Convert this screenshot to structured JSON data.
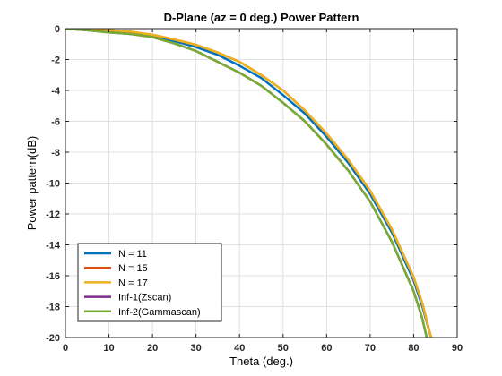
{
  "chart_data": {
    "type": "line",
    "title": "D-Plane (az = 0 deg.) Power Pattern",
    "xlabel": "Theta (deg.)",
    "ylabel": "Power pattern(dB)",
    "xlim": [
      0,
      90
    ],
    "ylim": [
      -20,
      0
    ],
    "xticks": [
      "0",
      "10",
      "20",
      "30",
      "40",
      "50",
      "60",
      "70",
      "80",
      "90"
    ],
    "yticks": [
      "0",
      "-2",
      "-4",
      "-6",
      "-8",
      "-10",
      "-12",
      "-14",
      "-16",
      "-18",
      "-20"
    ],
    "grid": true,
    "legend_position": "bottom-left",
    "series": [
      {
        "name": "N = 11",
        "color": "#0072BD",
        "x": [
          0,
          5,
          10,
          15,
          20,
          25,
          30,
          35,
          40,
          45,
          50,
          55,
          60,
          65,
          70,
          75,
          80,
          82,
          84
        ],
        "y": [
          0,
          -0.1,
          -0.2,
          -0.35,
          -0.5,
          -0.8,
          -1.2,
          -1.7,
          -2.4,
          -3.2,
          -4.3,
          -5.5,
          -7.0,
          -8.7,
          -10.7,
          -13.2,
          -16.3,
          -18.0,
          -20.0
        ]
      },
      {
        "name": "N = 15",
        "color": "#D95319",
        "x": [
          0,
          5,
          10,
          15,
          20,
          25,
          30,
          35,
          40,
          45,
          50,
          55,
          60,
          65,
          70,
          75,
          80,
          82,
          84
        ],
        "y": [
          0,
          -0.05,
          -0.1,
          -0.2,
          -0.4,
          -0.7,
          -1.05,
          -1.55,
          -2.15,
          -3.0,
          -4.0,
          -5.3,
          -6.8,
          -8.5,
          -10.5,
          -13.0,
          -16.1,
          -17.8,
          -20.0
        ]
      },
      {
        "name": "N = 17",
        "color": "#EDB120",
        "x": [
          0,
          5,
          10,
          15,
          20,
          25,
          30,
          35,
          40,
          45,
          50,
          55,
          60,
          65,
          70,
          75,
          80,
          82,
          84
        ],
        "y": [
          0,
          -0.05,
          -0.1,
          -0.2,
          -0.4,
          -0.7,
          -1.05,
          -1.55,
          -2.15,
          -3.0,
          -4.0,
          -5.3,
          -6.8,
          -8.5,
          -10.5,
          -13.0,
          -16.1,
          -17.8,
          -20.0
        ]
      },
      {
        "name": "Inf-1(Zscan)",
        "color": "#7E2F8E",
        "x": [
          0,
          5,
          10,
          15,
          20,
          25,
          30,
          35,
          40,
          45,
          50,
          55,
          60,
          65,
          70,
          75,
          80,
          82,
          83
        ],
        "y": [
          0,
          -0.1,
          -0.25,
          -0.35,
          -0.55,
          -0.95,
          -1.45,
          -2.15,
          -2.85,
          -3.7,
          -4.8,
          -6.0,
          -7.5,
          -9.2,
          -11.2,
          -13.8,
          -17.0,
          -18.8,
          -20.0
        ]
      },
      {
        "name": "Inf-2(Gammascan)",
        "color": "#77AC30",
        "x": [
          0,
          5,
          10,
          15,
          20,
          25,
          30,
          35,
          40,
          45,
          50,
          55,
          60,
          65,
          70,
          75,
          80,
          82,
          83
        ],
        "y": [
          0,
          -0.1,
          -0.25,
          -0.35,
          -0.55,
          -0.95,
          -1.45,
          -2.15,
          -2.85,
          -3.7,
          -4.8,
          -6.0,
          -7.5,
          -9.2,
          -11.2,
          -13.8,
          -17.0,
          -18.8,
          -20.0
        ]
      }
    ]
  }
}
